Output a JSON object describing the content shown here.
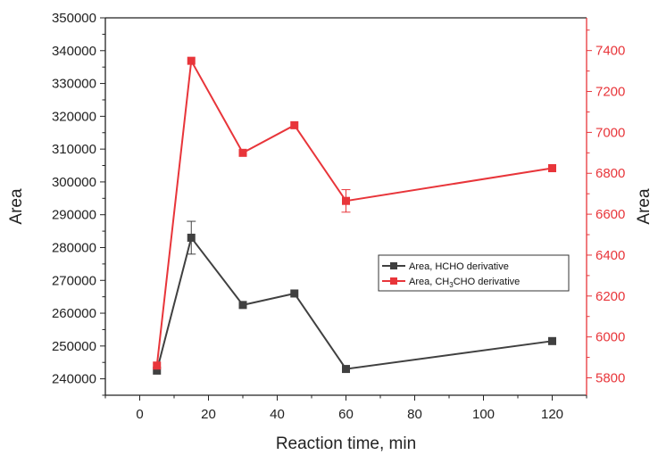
{
  "chart_data": {
    "type": "line",
    "xlabel": "Reaction time, min",
    "ylabel_left": "Area",
    "ylabel_right": "Area",
    "xlim": [
      -10,
      130
    ],
    "xticks": [
      0,
      20,
      40,
      60,
      80,
      100,
      120
    ],
    "ylim_left": [
      235000,
      350000
    ],
    "yticks_left": [
      240000,
      250000,
      260000,
      270000,
      280000,
      290000,
      300000,
      310000,
      320000,
      330000,
      340000,
      350000
    ],
    "ylim_right": [
      5715,
      7560
    ],
    "yticks_right": [
      5800,
      6000,
      6200,
      6400,
      6600,
      6800,
      7000,
      7200,
      7400
    ],
    "grid": false,
    "legend_position": "center-right",
    "series": [
      {
        "name": "Area, HCHO derivative",
        "axis": "left",
        "color": "#404040",
        "marker": "square",
        "x": [
          5,
          15,
          30,
          45,
          60,
          120
        ],
        "y": [
          242500,
          283000,
          262500,
          266000,
          243000,
          251500
        ],
        "error": [
          0,
          5000,
          0,
          0,
          0,
          0
        ]
      },
      {
        "name": "Area, CH3CHO derivative",
        "name_prefix": "Area, CH",
        "name_sub1": "3",
        "name_mid": "CHO derivative",
        "axis": "right",
        "color": "#e8353a",
        "marker": "square",
        "x": [
          5,
          15,
          30,
          45,
          60,
          120
        ],
        "y": [
          5860,
          7350,
          6900,
          7035,
          6665,
          6825
        ],
        "error": [
          0,
          0,
          0,
          0,
          55,
          0
        ]
      }
    ]
  }
}
